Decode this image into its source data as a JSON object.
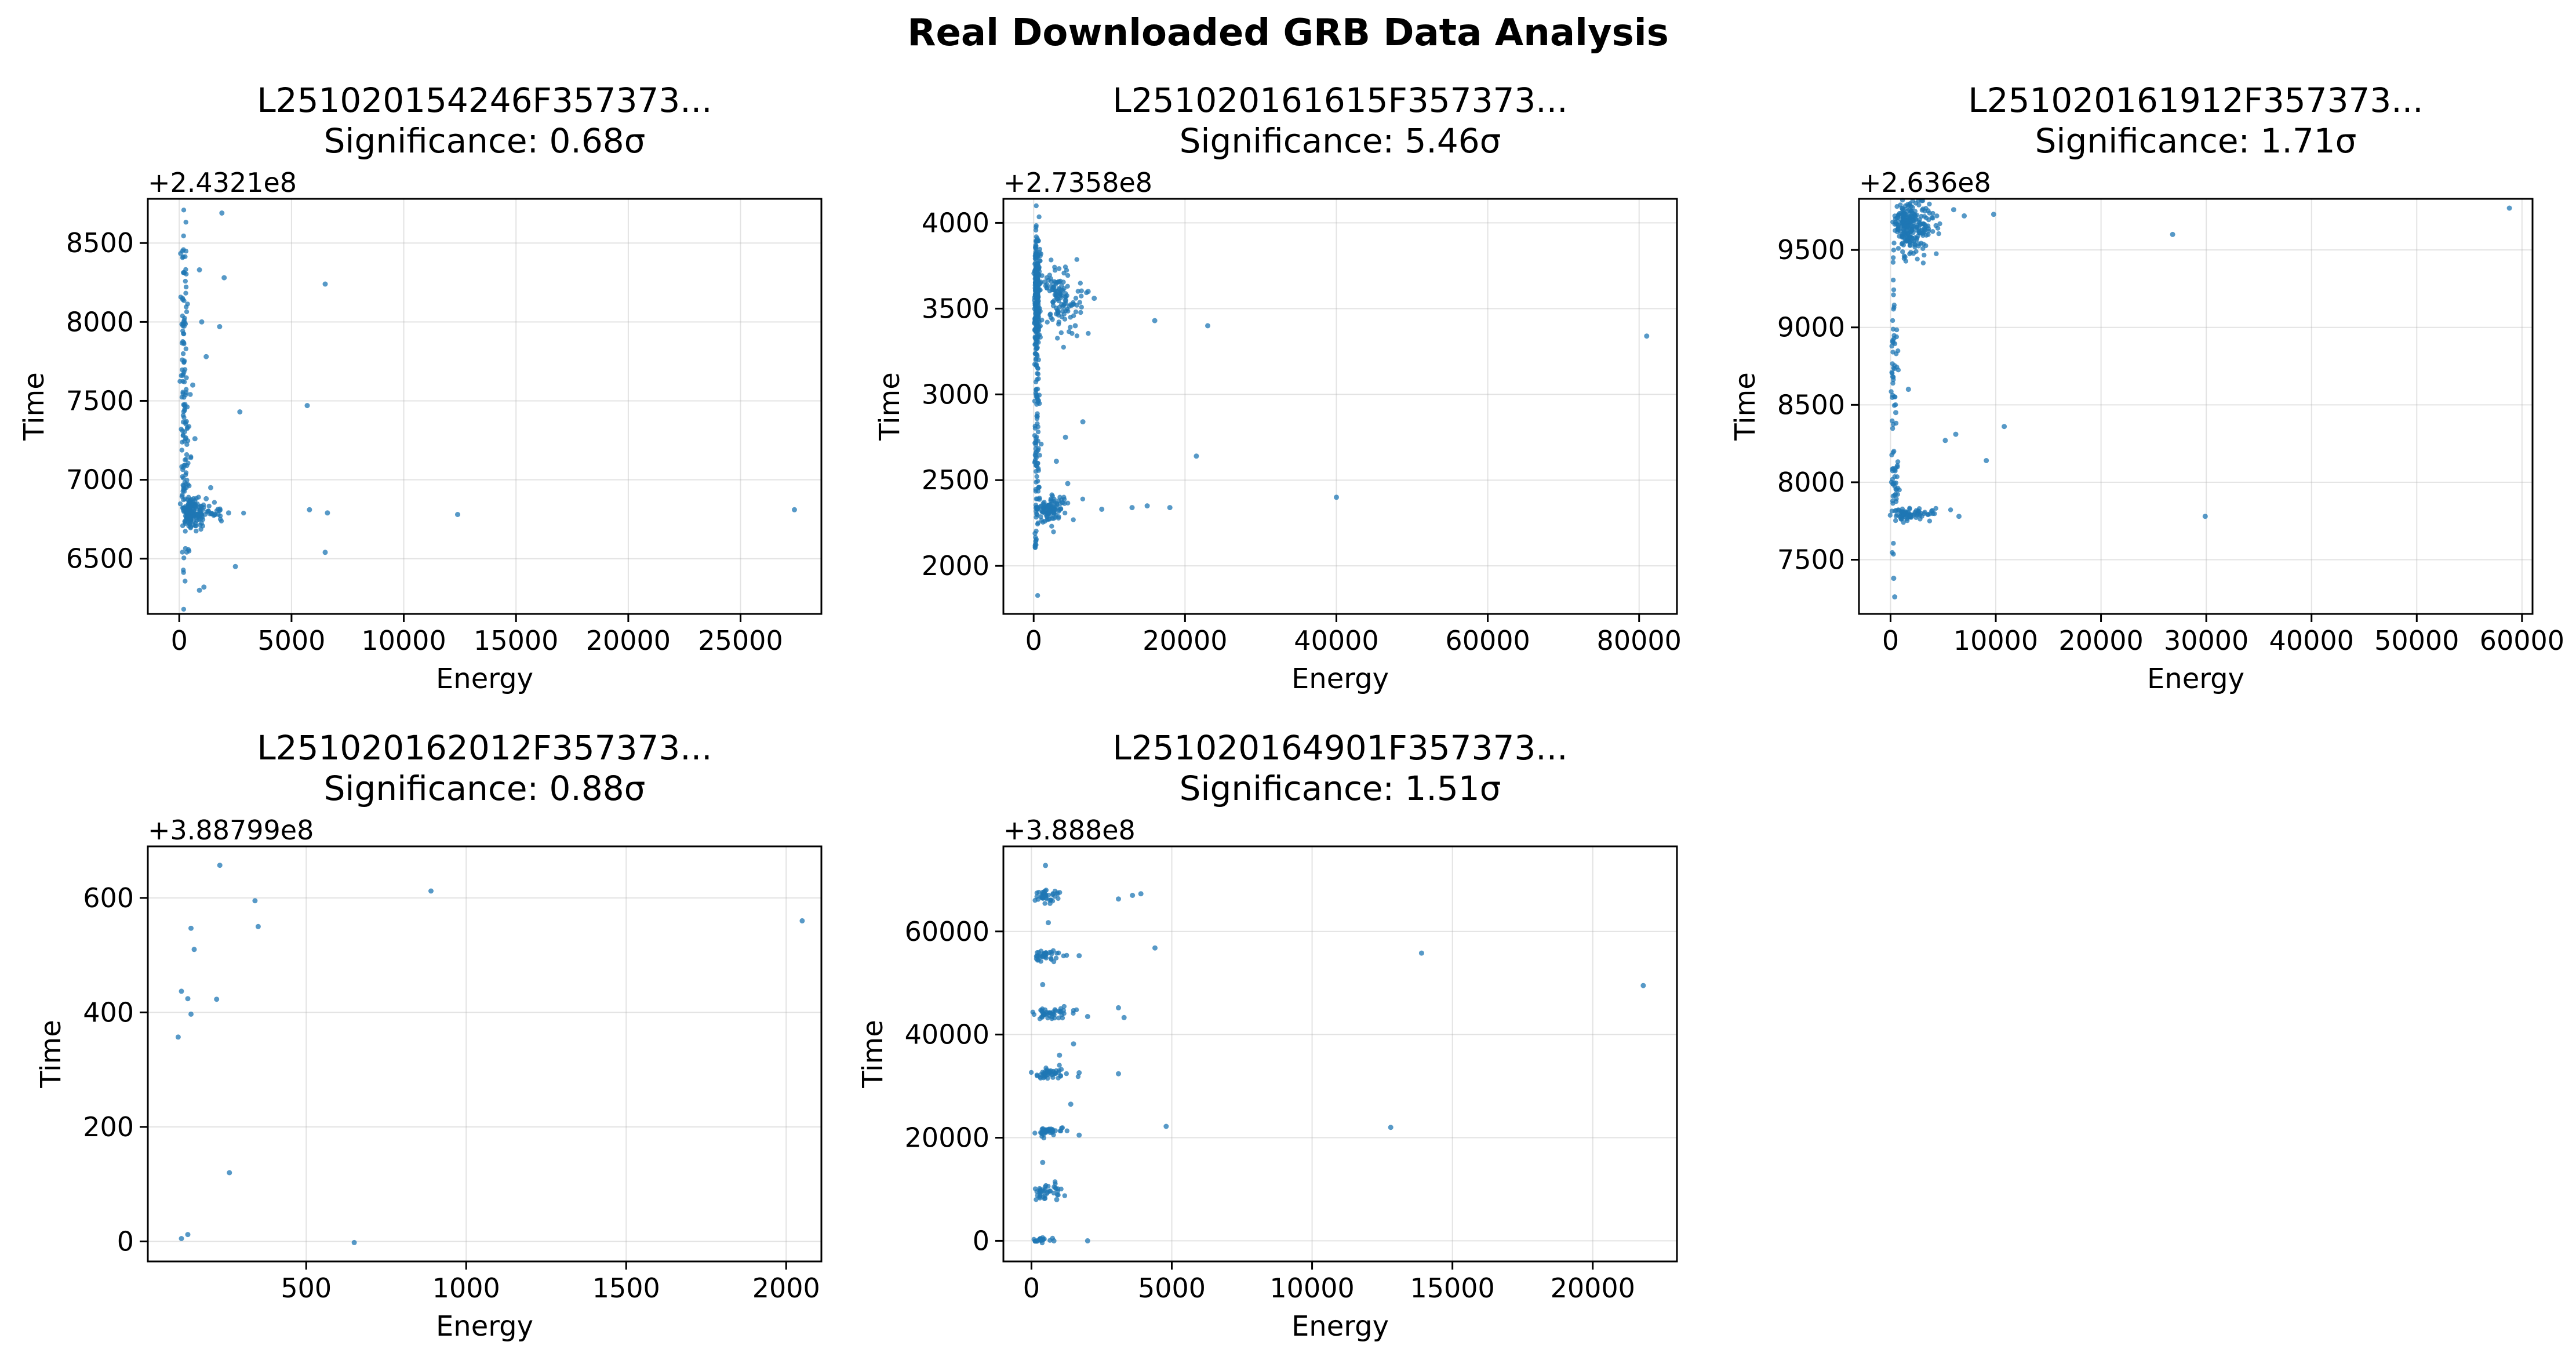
{
  "suptitle": "Real Downloaded GRB Data Analysis",
  "colors": {
    "points": "#1f77b4"
  },
  "chart_data": [
    {
      "type": "scatter",
      "title": "L251020154246F357373...",
      "subtitle": "Significance: 0.68σ",
      "xlabel": "Energy",
      "ylabel": "Time",
      "offset_text": "+2.4321e8",
      "grid": true,
      "xlim": [
        -1400,
        28600
      ],
      "ylim": [
        6150,
        8780
      ],
      "xticks": [
        0,
        5000,
        10000,
        15000,
        20000,
        25000
      ],
      "xtick_labels": [
        "0",
        "5000",
        "10000",
        "15000",
        "20000",
        "25000"
      ],
      "yticks": [
        6500,
        7000,
        7500,
        8000,
        8500
      ],
      "ytick_labels": [
        "6500",
        "7000",
        "7500",
        "8000",
        "8500"
      ],
      "points": [
        [
          1900,
          8690
        ],
        [
          2000,
          8280
        ],
        [
          1800,
          7970
        ],
        [
          1200,
          7780
        ],
        [
          2700,
          7430
        ],
        [
          6500,
          8240
        ],
        [
          5700,
          7470
        ],
        [
          5800,
          6810
        ],
        [
          6600,
          6790
        ],
        [
          6500,
          6540
        ],
        [
          12400,
          6780
        ],
        [
          27400,
          6810
        ],
        [
          2500,
          6450
        ],
        [
          1100,
          6320
        ],
        [
          2200,
          6790
        ],
        [
          1600,
          6780
        ],
        [
          900,
          6300
        ],
        [
          900,
          8330
        ],
        [
          1000,
          8000
        ],
        [
          600,
          7600
        ],
        [
          700,
          7260
        ],
        [
          1400,
          6950
        ],
        [
          1200,
          6880
        ]
      ],
      "dense": [
        {
          "x_center": 150,
          "x_spread": 230,
          "y_center": 7500,
          "y_spread": 1250,
          "n": 150
        },
        {
          "x_center": 350,
          "x_spread": 500,
          "y_center": 6790,
          "y_spread": 90,
          "n": 130
        },
        {
          "x_center": 900,
          "x_spread": 1000,
          "y_center": 6800,
          "y_spread": 60,
          "n": 40
        }
      ]
    },
    {
      "type": "scatter",
      "title": "L251020161615F357373...",
      "subtitle": "Significance: 5.46σ",
      "xlabel": "Energy",
      "ylabel": "Time",
      "offset_text": "+2.7358e8",
      "grid": true,
      "xlim": [
        -4000,
        85000
      ],
      "ylim": [
        1720,
        4140
      ],
      "xticks": [
        0,
        20000,
        40000,
        60000,
        80000
      ],
      "xtick_labels": [
        "0",
        "20000",
        "40000",
        "60000",
        "80000"
      ],
      "yticks": [
        2000,
        2500,
        3000,
        3500,
        4000
      ],
      "ytick_labels": [
        "2000",
        "2500",
        "3000",
        "3500",
        "4000"
      ],
      "points": [
        [
          16000,
          3430
        ],
        [
          23000,
          3400
        ],
        [
          81000,
          3340
        ],
        [
          40000,
          2400
        ],
        [
          21500,
          2640
        ],
        [
          6500,
          2840
        ],
        [
          13000,
          2340
        ],
        [
          15000,
          2350
        ],
        [
          18000,
          2340
        ],
        [
          9000,
          2330
        ],
        [
          8000,
          3560
        ],
        [
          7200,
          3600
        ],
        [
          5500,
          3400
        ],
        [
          4500,
          2480
        ],
        [
          4200,
          2750
        ],
        [
          3000,
          2610
        ]
      ],
      "dense": [
        {
          "x_center": 250,
          "x_spread": 500,
          "y_center": 3600,
          "y_spread": 400,
          "n": 260
        },
        {
          "x_center": 2500,
          "x_spread": 3500,
          "y_center": 3550,
          "y_spread": 200,
          "n": 120
        },
        {
          "x_center": 250,
          "x_spread": 400,
          "y_center": 2700,
          "y_spread": 900,
          "n": 110
        },
        {
          "x_center": 1500,
          "x_spread": 2500,
          "y_center": 2330,
          "y_spread": 70,
          "n": 100
        }
      ]
    },
    {
      "type": "scatter",
      "title": "L251020161912F357373...",
      "subtitle": "Significance: 1.71σ",
      "xlabel": "Energy",
      "ylabel": "Time",
      "offset_text": "+2.636e8",
      "grid": true,
      "xlim": [
        -3000,
        61000
      ],
      "ylim": [
        7150,
        9830
      ],
      "xticks": [
        0,
        10000,
        20000,
        30000,
        40000,
        50000,
        60000
      ],
      "xtick_labels": [
        "0",
        "10000",
        "20000",
        "30000",
        "40000",
        "50000",
        "60000"
      ],
      "yticks": [
        7500,
        8000,
        8500,
        9000,
        9500
      ],
      "ytick_labels": [
        "7500",
        "8000",
        "8500",
        "9000",
        "9500"
      ],
      "points": [
        [
          58800,
          9770
        ],
        [
          26800,
          9600
        ],
        [
          9800,
          9730
        ],
        [
          6000,
          9760
        ],
        [
          7000,
          9720
        ],
        [
          10800,
          8360
        ],
        [
          9100,
          8140
        ],
        [
          6200,
          8310
        ],
        [
          5200,
          8270
        ],
        [
          6500,
          7780
        ],
        [
          29900,
          7780
        ],
        [
          1700,
          8600
        ],
        [
          400,
          7260
        ],
        [
          300,
          7380
        ],
        [
          500,
          8450
        ]
      ],
      "dense": [
        {
          "x_center": 1200,
          "x_spread": 2200,
          "y_center": 9650,
          "y_spread": 180,
          "n": 260
        },
        {
          "x_center": 200,
          "x_spread": 300,
          "y_center": 8650,
          "y_spread": 950,
          "n": 60
        },
        {
          "x_center": 1000,
          "x_spread": 2500,
          "y_center": 7790,
          "y_spread": 40,
          "n": 70
        },
        {
          "x_center": 300,
          "x_spread": 400,
          "y_center": 7950,
          "y_spread": 200,
          "n": 30
        }
      ]
    },
    {
      "type": "scatter",
      "title": "L251020162012F357373...",
      "subtitle": "Significance: 0.88σ",
      "xlabel": "Energy",
      "ylabel": "Time",
      "offset_text": "+3.88799e8",
      "grid": true,
      "xlim": [
        5,
        2110
      ],
      "ylim": [
        -35,
        690
      ],
      "xticks": [
        500,
        1000,
        1500,
        2000
      ],
      "xtick_labels": [
        "500",
        "1000",
        "1500",
        "2000"
      ],
      "yticks": [
        0,
        200,
        400,
        600
      ],
      "ytick_labels": [
        "0",
        "200",
        "400",
        "600"
      ],
      "points": [
        [
          230,
          657
        ],
        [
          340,
          595
        ],
        [
          350,
          550
        ],
        [
          140,
          547
        ],
        [
          150,
          510
        ],
        [
          110,
          437
        ],
        [
          130,
          424
        ],
        [
          140,
          397
        ],
        [
          220,
          423
        ],
        [
          100,
          357
        ],
        [
          260,
          120
        ],
        [
          110,
          5
        ],
        [
          130,
          12
        ],
        [
          650,
          -2
        ],
        [
          890,
          612
        ],
        [
          2050,
          560
        ]
      ],
      "dense": []
    },
    {
      "type": "scatter",
      "title": "L251020164901F357373...",
      "subtitle": "Significance: 1.51σ",
      "xlabel": "Energy",
      "ylabel": "Time",
      "offset_text": "+3.888e8",
      "grid": true,
      "xlim": [
        -1000,
        23000
      ],
      "ylim": [
        -4000,
        76500
      ],
      "xticks": [
        0,
        5000,
        10000,
        15000,
        20000
      ],
      "xtick_labels": [
        "0",
        "5000",
        "10000",
        "15000",
        "20000"
      ],
      "yticks": [
        0,
        20000,
        40000,
        60000
      ],
      "ytick_labels": [
        "0",
        "20000",
        "40000",
        "60000"
      ],
      "points": [
        [
          21800,
          49500
        ],
        [
          13900,
          55800
        ],
        [
          12800,
          22000
        ],
        [
          4800,
          22200
        ],
        [
          4400,
          56800
        ],
        [
          3900,
          67300
        ],
        [
          3600,
          67000
        ],
        [
          3100,
          66300
        ],
        [
          3100,
          45200
        ],
        [
          3300,
          43300
        ],
        [
          3100,
          32400
        ],
        [
          2000,
          0
        ],
        [
          2000,
          43500
        ],
        [
          1700,
          55300
        ],
        [
          1700,
          32600
        ],
        [
          1700,
          20500
        ],
        [
          1400,
          26500
        ],
        [
          1500,
          38200
        ],
        [
          1000,
          36000
        ],
        [
          900,
          8000
        ],
        [
          800,
          0
        ],
        [
          500,
          72800
        ],
        [
          600,
          61700
        ],
        [
          400,
          49700
        ],
        [
          400,
          15200
        ]
      ],
      "dense": [
        {
          "x_center": 300,
          "x_spread": 600,
          "y_center": 67000,
          "y_spread": 1200,
          "n": 40
        },
        {
          "x_center": 300,
          "x_spread": 600,
          "y_center": 55500,
          "y_spread": 1200,
          "n": 40
        },
        {
          "x_center": 350,
          "x_spread": 800,
          "y_center": 44200,
          "y_spread": 1200,
          "n": 45
        },
        {
          "x_center": 350,
          "x_spread": 800,
          "y_center": 32500,
          "y_spread": 1200,
          "n": 45
        },
        {
          "x_center": 350,
          "x_spread": 800,
          "y_center": 21300,
          "y_spread": 1000,
          "n": 40
        },
        {
          "x_center": 300,
          "x_spread": 600,
          "y_center": 9500,
          "y_spread": 1500,
          "n": 40
        },
        {
          "x_center": 200,
          "x_spread": 400,
          "y_center": 200,
          "y_spread": 400,
          "n": 20
        }
      ]
    }
  ]
}
